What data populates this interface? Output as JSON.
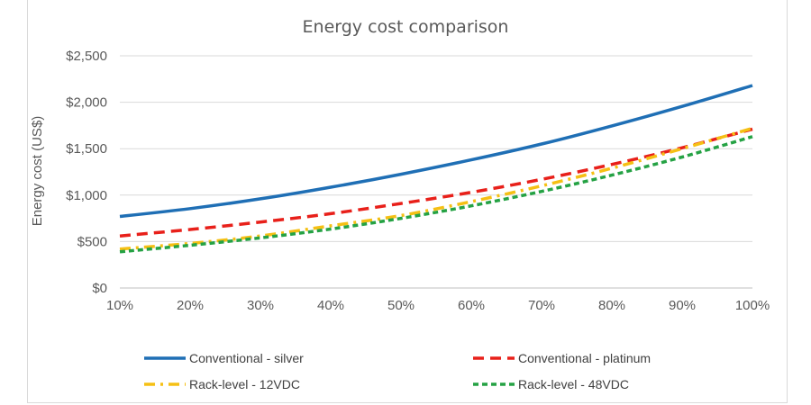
{
  "chart_data": {
    "type": "line",
    "title": "Energy cost comparison",
    "xlabel": "",
    "ylabel": "Energy cost (US$)",
    "x": [
      "10%",
      "20%",
      "30%",
      "40%",
      "50%",
      "60%",
      "70%",
      "80%",
      "90%",
      "100%"
    ],
    "yticks": [
      "$0",
      "$500",
      "$1,000",
      "$1,500",
      "$2,000",
      "$2,500"
    ],
    "ylim": [
      0,
      2500
    ],
    "grid": true,
    "legend_position": "bottom",
    "series": [
      {
        "name": "Conventional - silver",
        "color": "#1f6fb5",
        "dash": "solid",
        "values": [
          770,
          855,
          960,
          1085,
          1225,
          1380,
          1550,
          1745,
          1955,
          2180
        ]
      },
      {
        "name": "Conventional - platinum",
        "color": "#e8201a",
        "dash": "dash",
        "values": [
          560,
          630,
          710,
          800,
          910,
          1030,
          1170,
          1330,
          1510,
          1710
        ]
      },
      {
        "name": "Rack-level - 12VDC",
        "color": "#f5c014",
        "dash": "dashdot",
        "values": [
          420,
          480,
          560,
          670,
          780,
          930,
          1100,
          1290,
          1500,
          1720
        ]
      },
      {
        "name": "Rack-level - 48VDC",
        "color": "#25a244",
        "dash": "dot",
        "values": [
          390,
          460,
          540,
          635,
          750,
          885,
          1040,
          1215,
          1410,
          1630
        ]
      }
    ]
  }
}
